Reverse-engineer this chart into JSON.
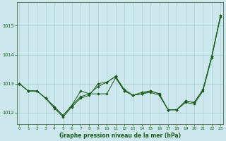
{
  "title": "Graphe pression niveau de la mer (hPa)",
  "bg_color": "#cce8ed",
  "grid_color": "#aacdd4",
  "line_color": "#1a5c1a",
  "ylim": [
    1011.6,
    1015.8
  ],
  "yticks": [
    1012,
    1013,
    1014,
    1015
  ],
  "xlim": [
    0,
    23
  ],
  "xticks": [
    0,
    1,
    2,
    3,
    4,
    5,
    6,
    7,
    8,
    9,
    10,
    11,
    12,
    13,
    14,
    15,
    16,
    17,
    18,
    19,
    20,
    21,
    22,
    23
  ],
  "series": [
    [
      1013.0,
      1012.75,
      1012.75,
      1012.5,
      1012.2,
      1011.9,
      1012.25,
      1012.55,
      1012.65,
      1012.65,
      1012.65,
      1013.2,
      1012.75,
      1012.6,
      1012.65,
      1012.75,
      1012.65,
      1012.1,
      1012.1,
      1012.4,
      1012.35,
      1012.8,
      1013.95,
      1015.35
    ],
    [
      1013.0,
      1012.75,
      1012.75,
      1012.5,
      1012.2,
      1011.9,
      1012.25,
      1012.75,
      1012.65,
      1012.9,
      1013.05,
      1013.25,
      1012.75,
      1012.6,
      1012.7,
      1012.75,
      1012.65,
      1012.1,
      1012.1,
      1012.4,
      1012.35,
      1012.8,
      1013.95,
      1015.35
    ],
    [
      1013.0,
      1012.75,
      1012.75,
      1012.5,
      1012.15,
      1011.85,
      1012.2,
      1012.5,
      1012.6,
      1013.0,
      1013.05,
      1013.25,
      1012.8,
      1012.6,
      1012.65,
      1012.7,
      1012.6,
      1012.1,
      1012.1,
      1012.35,
      1012.3,
      1012.75,
      1013.9,
      1015.3
    ]
  ]
}
